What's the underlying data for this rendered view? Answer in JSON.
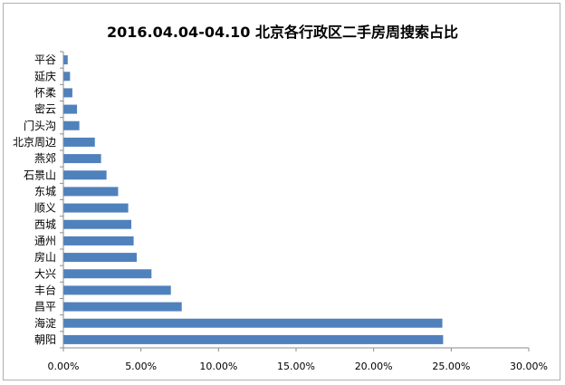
{
  "chart_data": {
    "type": "bar",
    "orientation": "horizontal",
    "title": "2016.04.04-04.10  北京各行政区二手房周搜索占比",
    "categories": [
      "朝阳",
      "海淀",
      "昌平",
      "丰台",
      "大兴",
      "房山",
      "通州",
      "西城",
      "顺义",
      "东城",
      "石景山",
      "燕郊",
      "北京周边",
      "门头沟",
      "密云",
      "怀柔",
      "延庆",
      "平谷"
    ],
    "values": [
      0.2445,
      0.244,
      0.076,
      0.069,
      0.0565,
      0.047,
      0.045,
      0.0435,
      0.0415,
      0.035,
      0.0275,
      0.024,
      0.02,
      0.01,
      0.0085,
      0.0055,
      0.004,
      0.0025
    ],
    "xlim": [
      0,
      0.3
    ],
    "xticks": [
      "0.00%",
      "5.00%",
      "10.00%",
      "15.00%",
      "20.00%",
      "25.00%",
      "30.00%"
    ],
    "bar_color": "#4f81bd",
    "grid": false
  }
}
